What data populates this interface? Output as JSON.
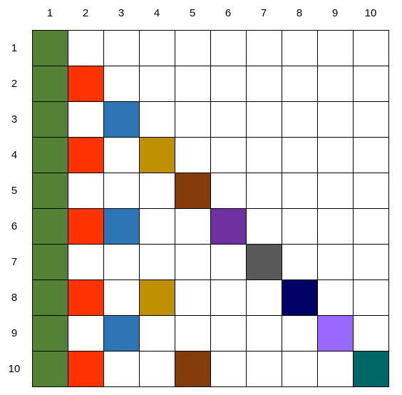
{
  "column_labels": [
    "1",
    "2",
    "3",
    "4",
    "5",
    "6",
    "7",
    "8",
    "9",
    "10"
  ],
  "row_labels": [
    "1",
    "2",
    "3",
    "4",
    "5",
    "6",
    "7",
    "8",
    "9",
    "10"
  ],
  "colors": {
    "1": "#548235",
    "2": "#ff3300",
    "3": "#2e75b6",
    "4": "#bf9000",
    "5": "#843c0c",
    "6": "#7030a0",
    "7": "#595959",
    "8": "#000066",
    "9": "#9966ff",
    "10": "#006666"
  },
  "filled_cells": [
    {
      "row": 1,
      "col": 1
    },
    {
      "row": 2,
      "col": 1
    },
    {
      "row": 2,
      "col": 2
    },
    {
      "row": 3,
      "col": 1
    },
    {
      "row": 3,
      "col": 3
    },
    {
      "row": 4,
      "col": 1
    },
    {
      "row": 4,
      "col": 2
    },
    {
      "row": 4,
      "col": 4
    },
    {
      "row": 5,
      "col": 1
    },
    {
      "row": 5,
      "col": 5
    },
    {
      "row": 6,
      "col": 1
    },
    {
      "row": 6,
      "col": 2
    },
    {
      "row": 6,
      "col": 3
    },
    {
      "row": 6,
      "col": 6
    },
    {
      "row": 7,
      "col": 1
    },
    {
      "row": 7,
      "col": 7
    },
    {
      "row": 8,
      "col": 1
    },
    {
      "row": 8,
      "col": 2
    },
    {
      "row": 8,
      "col": 4
    },
    {
      "row": 8,
      "col": 8
    },
    {
      "row": 9,
      "col": 1
    },
    {
      "row": 9,
      "col": 3
    },
    {
      "row": 9,
      "col": 9
    },
    {
      "row": 10,
      "col": 1
    },
    {
      "row": 10,
      "col": 2
    },
    {
      "row": 10,
      "col": 5
    },
    {
      "row": 10,
      "col": 10
    }
  ]
}
